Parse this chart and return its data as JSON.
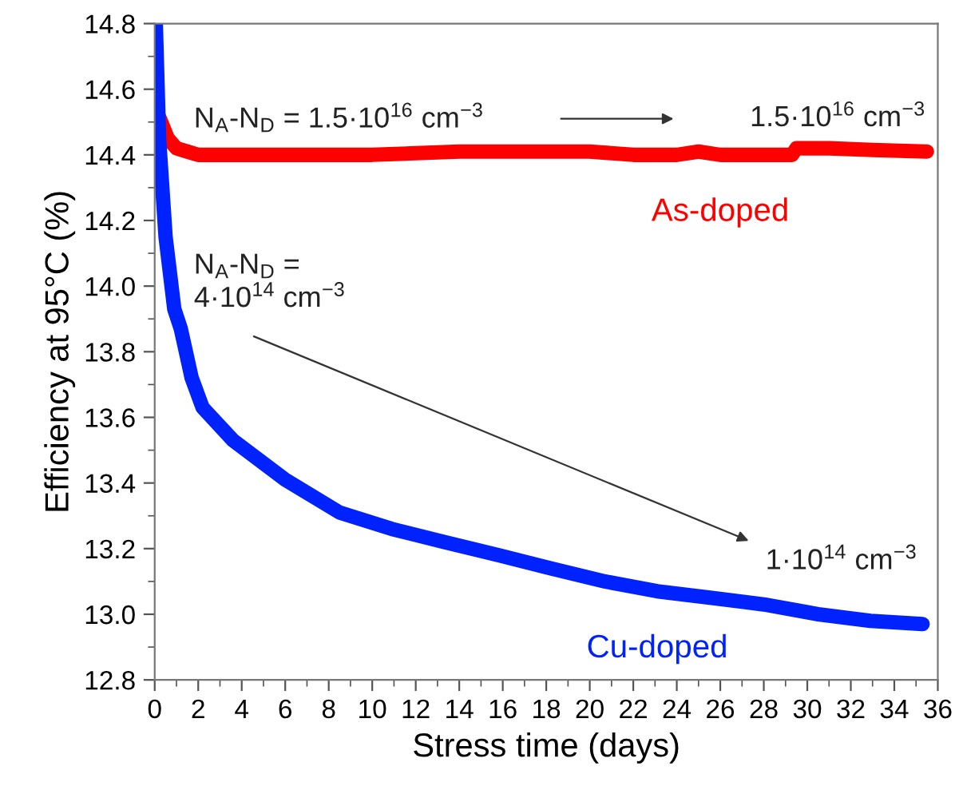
{
  "chart_data": {
    "type": "line",
    "xlabel": "Stress time (days)",
    "ylabel": "Efficiency at 95°C (%)",
    "xlim": [
      0,
      36
    ],
    "xticks": [
      0,
      2,
      4,
      6,
      8,
      10,
      12,
      14,
      16,
      18,
      20,
      22,
      24,
      26,
      28,
      30,
      32,
      34,
      36
    ],
    "ylim": [
      12.8,
      14.8
    ],
    "yticks": [
      12.8,
      {
        "value": 13,
        "label": "13.0"
      },
      13.2,
      13.4,
      13.6,
      13.8,
      {
        "value": 14,
        "label": "14.0"
      },
      14.2,
      14.4,
      14.6,
      14.8
    ],
    "grid": false,
    "legend": false,
    "marker": "none",
    "line_style": "solid",
    "series": [
      {
        "name": "As-doped",
        "color": "#ff0000",
        "x": [
          0.1,
          0.3,
          0.6,
          1.0,
          1.5,
          2.0,
          4,
          6,
          8,
          10,
          12,
          14,
          16,
          18,
          20,
          22,
          24,
          25,
          26,
          28,
          29.3,
          29.5,
          31,
          33,
          35.5
        ],
        "values": [
          14.53,
          14.5,
          14.45,
          14.42,
          14.41,
          14.4,
          14.4,
          14.4,
          14.4,
          14.4,
          14.405,
          14.41,
          14.41,
          14.41,
          14.41,
          14.4,
          14.4,
          14.41,
          14.4,
          14.4,
          14.4,
          14.42,
          14.42,
          14.415,
          14.41
        ]
      },
      {
        "name": "Cu-doped",
        "color": "#0022ff",
        "x": [
          0.05,
          0.2,
          0.5,
          0.9,
          1.2,
          1.7,
          2.2,
          3.6,
          6.0,
          8.5,
          10.9,
          13.3,
          15.8,
          18.2,
          20.7,
          23.1,
          25.6,
          28.0,
          30.5,
          32.9,
          35.3
        ],
        "values": [
          14.8,
          14.45,
          14.15,
          13.93,
          13.87,
          13.72,
          13.63,
          13.53,
          13.41,
          13.31,
          13.26,
          13.22,
          13.18,
          13.14,
          13.1,
          13.07,
          13.05,
          13.03,
          13.0,
          12.98,
          12.97
        ]
      }
    ],
    "annotations": [
      "N$_{A}$-N$_{D}$ = 1.5·10$^{16}$ cm$^{−3}$",
      "1.5·10$^{16}$ cm$^{−3}$",
      "N$_{A}$-N$_{D}$ =\n4·10$^{14}$ cm$^{−3}$",
      "1·10$^{14}$ cm$^{−3}$"
    ]
  }
}
